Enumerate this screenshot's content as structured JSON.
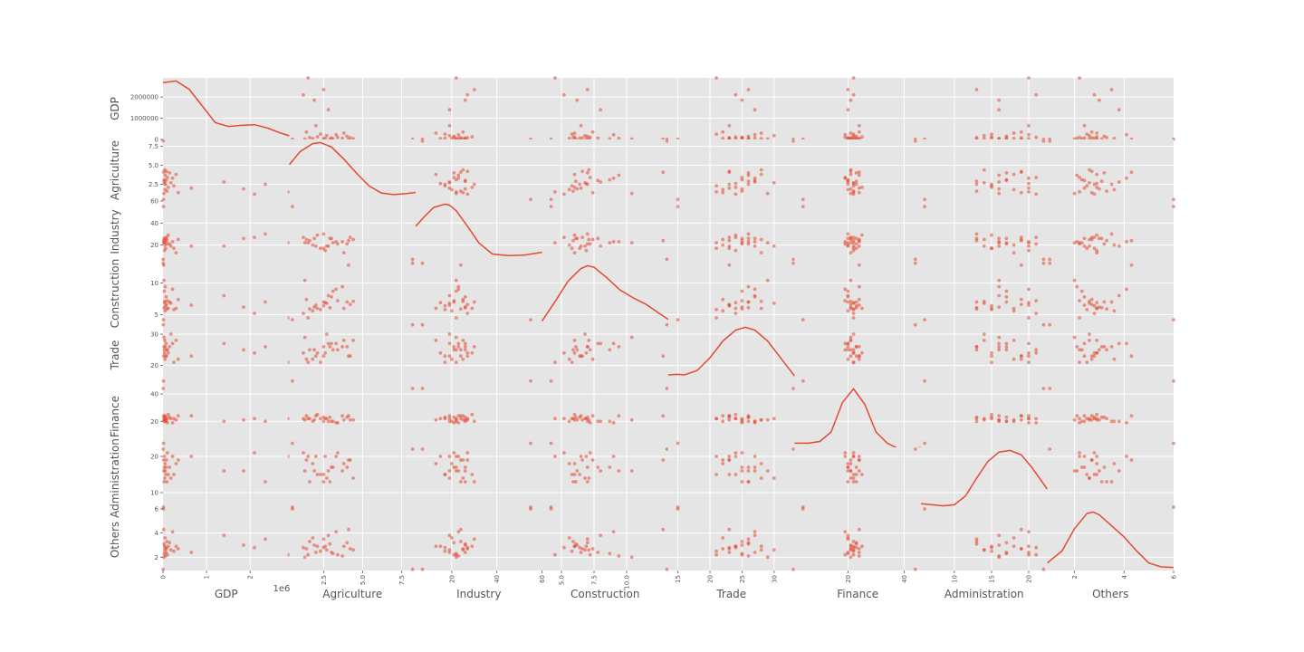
{
  "chart_data": {
    "type": "scatter",
    "variables": [
      "GDP",
      "Agriculture",
      "Industry",
      "Construction",
      "Trade",
      "Finance",
      "Administration",
      "Others"
    ],
    "x_offset_label": "1e6",
    "colors": {
      "marker": "#E24A33",
      "panel_background": "#E5E5E5",
      "grid": "#FFFFFF",
      "label_text": "#555555",
      "tick_text": "#555555"
    },
    "grid": true,
    "axes": [
      {
        "name": "GDP",
        "lim": [
          0,
          2900000
        ],
        "ticks": [
          0,
          1000000,
          2000000
        ],
        "row_tick_labels": [
          "0",
          "1000000",
          "2000000"
        ],
        "col_tick_labels": [
          "0",
          "1",
          "2"
        ]
      },
      {
        "name": "Agriculture",
        "lim": [
          0.3,
          8.4
        ],
        "ticks": [
          2.5,
          5.0,
          7.5
        ],
        "row_tick_labels": [
          "2.5",
          "5.0",
          "7.5"
        ],
        "col_tick_labels": [
          "2.5",
          "5.0",
          "7.5"
        ]
      },
      {
        "name": "Industry",
        "lim": [
          4,
          60
        ],
        "ticks": [
          20,
          40,
          60
        ],
        "row_tick_labels": [
          "20",
          "40",
          "60"
        ],
        "col_tick_labels": [
          "20",
          "40",
          "60"
        ]
      },
      {
        "name": "Construction",
        "lim": [
          3.5,
          13.2
        ],
        "ticks": [
          5,
          10
        ],
        "row_tick_labels": [
          "5",
          "10"
        ],
        "col_tick_labels": [
          "5.0",
          "7.5",
          "10.0"
        ],
        "col_ticks": [
          5.0,
          7.5,
          10.0
        ]
      },
      {
        "name": "Trade",
        "lim": [
          13.5,
          33.2
        ],
        "ticks": [
          20,
          30
        ],
        "row_tick_labels": [
          "20",
          "30"
        ],
        "col_tick_labels": [
          "15",
          "20",
          "25",
          "30"
        ],
        "col_ticks": [
          15,
          20,
          25,
          30
        ]
      },
      {
        "name": "Finance",
        "lim": [
          1,
          46
        ],
        "ticks": [
          20,
          40
        ],
        "row_tick_labels": [
          "20",
          "40"
        ],
        "col_tick_labels": [
          "20",
          "40"
        ]
      },
      {
        "name": "Administration",
        "lim": [
          5.5,
          22.5
        ],
        "ticks": [
          10,
          20
        ],
        "row_tick_labels": [
          "10",
          "20"
        ],
        "col_tick_labels": [
          "10",
          "15",
          "20"
        ],
        "col_ticks": [
          10,
          15,
          20
        ]
      },
      {
        "name": "Others",
        "lim": [
          0.9,
          6
        ],
        "ticks": [
          2,
          4,
          6
        ],
        "row_tick_labels": [
          "2",
          "4",
          "6"
        ],
        "col_tick_labels": [
          "2",
          "4",
          "6"
        ]
      }
    ],
    "data": [
      [
        2900000,
        1.5,
        22,
        4.5,
        21,
        22,
        20,
        2.2
      ],
      [
        2350000,
        2.5,
        30,
        7.0,
        26,
        20,
        13,
        3.5
      ],
      [
        2100000,
        1.2,
        27,
        5.2,
        24,
        22,
        21,
        2.8
      ],
      [
        1850000,
        1.9,
        26,
        6.2,
        25,
        21,
        16,
        3.0
      ],
      [
        1400000,
        2.8,
        19,
        8.0,
        27,
        20,
        16,
        3.8
      ],
      [
        650000,
        2.0,
        19,
        6.5,
        23,
        24,
        20,
        2.4
      ],
      [
        350000,
        1.4,
        25,
        7.4,
        22,
        24,
        19,
        2.7
      ],
      [
        300000,
        3.8,
        13,
        6.0,
        28,
        21,
        18,
        2.9
      ],
      [
        250000,
        2.3,
        17,
        5.8,
        21,
        22,
        15,
        2.5
      ],
      [
        220000,
        3.3,
        23,
        9.0,
        27,
        19,
        20,
        4.1
      ],
      [
        180000,
        2.7,
        19,
        6.8,
        30,
        22,
        14,
        2.6
      ],
      [
        150000,
        4.0,
        21,
        7.0,
        26,
        23,
        17,
        3.2
      ],
      [
        120000,
        2.1,
        29,
        6.0,
        24,
        25,
        15,
        2.9
      ],
      [
        100000,
        3.4,
        21,
        7.2,
        25,
        19,
        21,
        2.2
      ],
      [
        90000,
        1.6,
        24,
        5.9,
        25,
        22,
        13,
        3.3
      ],
      [
        80000,
        4.2,
        27,
        6.6,
        23,
        21,
        19,
        2.7
      ],
      [
        70000,
        3.0,
        26,
        7.8,
        27,
        20,
        17,
        2.4
      ],
      [
        60000,
        2.5,
        17,
        6.4,
        23,
        23,
        15,
        2.8
      ],
      [
        50000,
        3.7,
        23,
        9.4,
        26,
        24,
        16,
        2.1
      ],
      [
        45000,
        1.8,
        20,
        5.6,
        22,
        20,
        18,
        3.6
      ],
      [
        40000,
        4.4,
        25,
        7.1,
        28,
        21,
        14,
        2.6
      ],
      [
        35000,
        2.6,
        15,
        6.9,
        24,
        22,
        20,
        2.9
      ],
      [
        30000,
        3.1,
        22,
        8.7,
        25,
        20,
        17,
        2.3
      ],
      [
        25000,
        2.9,
        26,
        6.1,
        26,
        23,
        13,
        3.1
      ],
      [
        20000,
        1.3,
        22,
        10.4,
        29,
        21,
        16,
        2.0
      ],
      [
        15000,
        4.1,
        24,
        12.8,
        23,
        24,
        19,
        4.3
      ],
      [
        10000,
        0.5,
        55,
        4.2,
        15,
        4,
        6,
        6.0
      ],
      [
        5000,
        8.2,
        7,
        13.1,
        33,
        44,
        22,
        1.0
      ]
    ],
    "kde": [
      {
        "xs": [
          0,
          300000,
          600000,
          900000,
          1200000,
          1500000,
          1800000,
          2100000,
          2400000,
          2700000,
          2900000
        ],
        "ys": [
          0.97,
          1.0,
          0.85,
          0.55,
          0.25,
          0.18,
          0.2,
          0.21,
          0.15,
          0.06,
          0.01
        ]
      },
      {
        "xs": [
          0.3,
          1.0,
          1.8,
          2.3,
          3.0,
          3.8,
          4.6,
          5.4,
          6.2,
          7.0,
          7.8,
          8.4
        ],
        "ys": [
          0.6,
          0.84,
          0.98,
          1.0,
          0.92,
          0.7,
          0.45,
          0.22,
          0.09,
          0.06,
          0.08,
          0.1
        ]
      },
      {
        "xs": [
          4,
          8,
          12,
          17,
          19,
          22,
          27,
          32,
          38,
          45,
          52,
          60
        ],
        "ys": [
          0.6,
          0.78,
          0.94,
          1.0,
          0.98,
          0.88,
          0.6,
          0.3,
          0.1,
          0.07,
          0.08,
          0.13
        ]
      },
      {
        "xs": [
          3.5,
          4.5,
          5.5,
          6.5,
          7.0,
          7.5,
          8.5,
          9.5,
          10.5,
          11.5,
          12.5,
          13.2
        ],
        "ys": [
          0.0,
          0.35,
          0.72,
          0.95,
          1.0,
          0.97,
          0.78,
          0.56,
          0.42,
          0.3,
          0.14,
          0.03
        ]
      },
      {
        "xs": [
          13.5,
          15,
          16,
          18,
          20,
          22,
          24,
          25.5,
          27,
          29,
          31,
          33.2
        ],
        "ys": [
          0.14,
          0.15,
          0.14,
          0.22,
          0.45,
          0.75,
          0.95,
          1.0,
          0.95,
          0.75,
          0.45,
          0.12
        ]
      },
      {
        "xs": [
          1,
          6,
          10,
          14,
          18,
          22,
          26,
          30,
          34,
          38,
          42,
          46
        ],
        "ys": [
          0.02,
          0.02,
          0.05,
          0.22,
          0.75,
          1.0,
          0.72,
          0.22,
          0.02,
          -0.08,
          -0.08,
          -0.06
        ]
      },
      {
        "xs": [
          5.5,
          7,
          8.5,
          10,
          11.5,
          13,
          14.5,
          16,
          17.5,
          19,
          20.5,
          22.5
        ],
        "ys": [
          0.04,
          0.02,
          0.0,
          0.02,
          0.18,
          0.5,
          0.8,
          0.97,
          1.0,
          0.92,
          0.68,
          0.3
        ]
      },
      {
        "xs": [
          0.9,
          1.5,
          2.0,
          2.5,
          2.75,
          3.0,
          3.5,
          4.0,
          4.5,
          5.0,
          5.5,
          6.0
        ],
        "ys": [
          0.08,
          0.3,
          0.7,
          0.97,
          1.0,
          0.95,
          0.75,
          0.55,
          0.3,
          0.08,
          0.01,
          0.0
        ]
      }
    ]
  }
}
